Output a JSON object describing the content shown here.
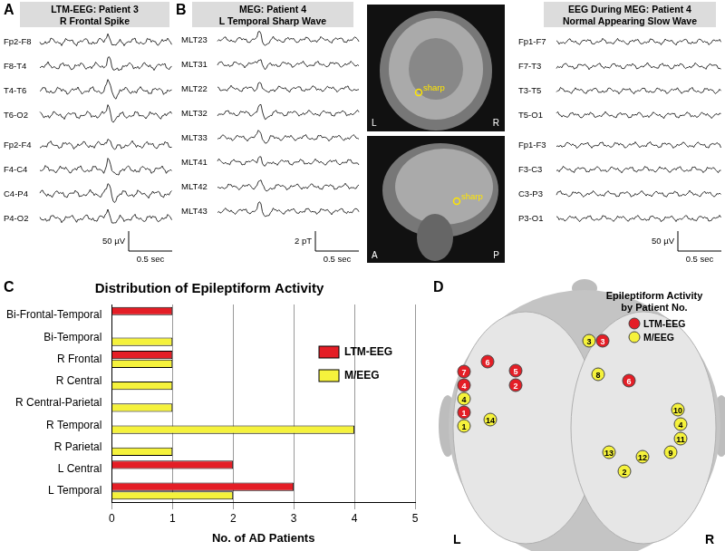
{
  "chart_data": {
    "type": "bar",
    "orientation": "horizontal",
    "title": "Distribution of Epileptiform Activity",
    "x_label": "No. of AD Patients",
    "categories": [
      "Bi-Frontal-Temporal",
      "Bi-Temporal",
      "R Frontal",
      "R Central",
      "R Central-Parietal",
      "R Temporal",
      "R Parietal",
      "L Central",
      "L Temporal"
    ],
    "series": [
      {
        "name": "LTM-EEG",
        "color": "#e41e26",
        "values": [
          1,
          0,
          1,
          0,
          0,
          0,
          0,
          2,
          3
        ]
      },
      {
        "name": "M/EEG",
        "color": "#f5f23c",
        "values": [
          0,
          1,
          1,
          1,
          1,
          4,
          1,
          0,
          2
        ]
      }
    ],
    "xlim": [
      0,
      5
    ],
    "xticks": [
      0,
      1,
      2,
      3,
      4,
      5
    ],
    "grid": true,
    "legend": "upper right"
  },
  "panels": {
    "C": {
      "label": "C"
    },
    "A": {
      "label": "A",
      "title": [
        "LTM-EEG: Patient 3",
        "R Frontal Spike"
      ],
      "channels": [
        "Fp2-F8",
        "F8-T4",
        "T4-T6",
        "T6-O2",
        "Fp2-F4",
        "F4-C4",
        "C4-P4",
        "P4-O2"
      ],
      "scale_amplitude": "50 µV",
      "scale_time": "0.5 sec"
    },
    "B": {
      "label": "B",
      "title": [
        "MEG: Patient 4",
        "L Temporal Sharp Wave"
      ],
      "channels": [
        "MLT23",
        "MLT31",
        "MLT22",
        "MLT32",
        "MLT33",
        "MLT41",
        "MLT42",
        "MLT43"
      ],
      "scale_amplitude": "2 pT",
      "scale_time": "0.5 sec",
      "mri_coronal": [
        "L",
        "R"
      ],
      "mri_sagittal": [
        "A",
        "P"
      ],
      "marker": "sharp"
    },
    "B_EEG": {
      "title": [
        "EEG During MEG: Patient 4",
        "Normal Appearing Slow Wave"
      ],
      "channels": [
        "Fp1-F7",
        "F7-T3",
        "T3-T5",
        "T5-O1",
        "Fp1-F3",
        "F3-C3",
        "C3-P3",
        "P3-O1"
      ],
      "scale_amplitude": "50 µV",
      "scale_time": "0.5 sec"
    },
    "D": {
      "label": "D",
      "title": [
        "Epileptiform Activity",
        "by Patient No."
      ],
      "legend": [
        {
          "name": "LTM-EEG",
          "color": "#e41e26"
        },
        {
          "name": "M/EEG",
          "color": "#f5f23c"
        }
      ],
      "sides": [
        "L",
        "R"
      ],
      "markers": [
        {
          "label": "6",
          "group": "LTM-EEG"
        },
        {
          "label": "5",
          "group": "LTM-EEG"
        },
        {
          "label": "2",
          "group": "LTM-EEG"
        },
        {
          "label": "7",
          "group": "LTM-EEG"
        },
        {
          "label": "4",
          "group": "LTM-EEG"
        },
        {
          "label": "1",
          "group": "LTM-EEG"
        },
        {
          "label": "3",
          "group": "LTM-EEG"
        },
        {
          "label": "6",
          "group": "LTM-EEG"
        },
        {
          "label": "4",
          "group": "M/EEG"
        },
        {
          "label": "1",
          "group": "M/EEG"
        },
        {
          "label": "14",
          "group": "M/EEG"
        },
        {
          "label": "3",
          "group": "M/EEG"
        },
        {
          "label": "8",
          "group": "M/EEG"
        },
        {
          "label": "10",
          "group": "M/EEG"
        },
        {
          "label": "4",
          "group": "M/EEG"
        },
        {
          "label": "11",
          "group": "M/EEG"
        },
        {
          "label": "9",
          "group": "M/EEG"
        },
        {
          "label": "13",
          "group": "M/EEG"
        },
        {
          "label": "12",
          "group": "M/EEG"
        },
        {
          "label": "2",
          "group": "M/EEG"
        }
      ]
    }
  }
}
